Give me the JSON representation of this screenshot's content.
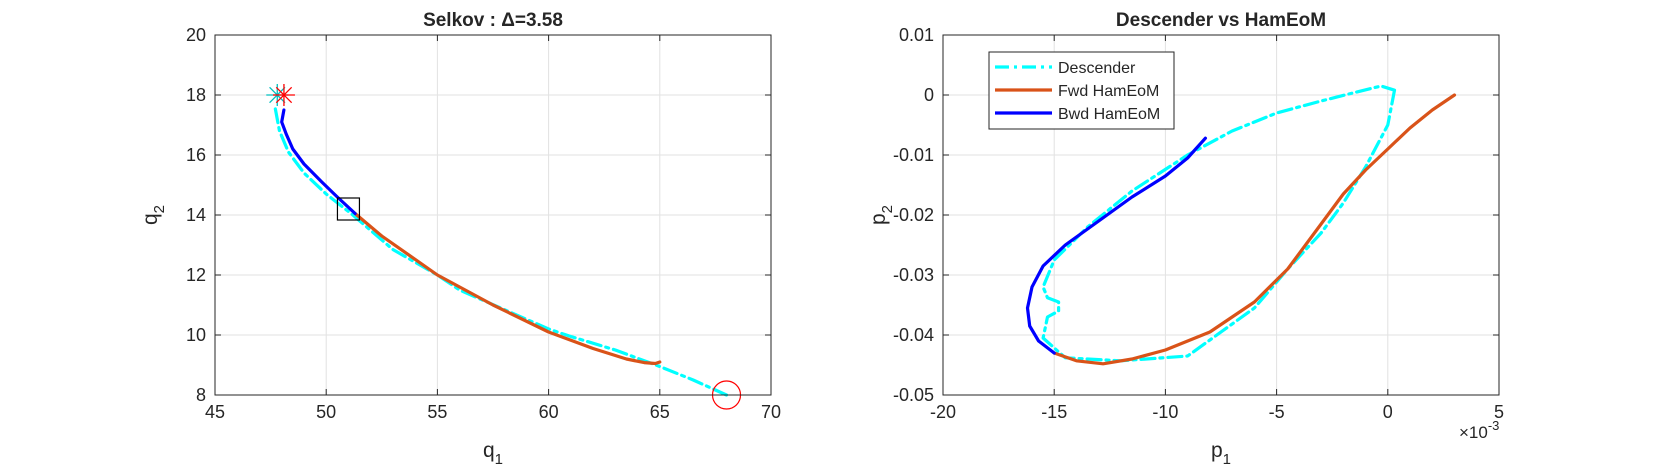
{
  "figure": {
    "background": "#ffffff"
  },
  "colors": {
    "descender": "#00ffff",
    "fwd": "#d95319",
    "bwd": "#0000ff",
    "marker_red": "#ff0000",
    "marker_start_cyan": "#00bfbf",
    "box": "#000000",
    "grid": "#e2e2e2",
    "axis": "#262626"
  },
  "chart_data": [
    {
      "type": "line",
      "title": "Selkov : Δ=3.58",
      "xlabel": "q",
      "xlabel_sub": "1",
      "ylabel": "q",
      "ylabel_sub": "2",
      "xlim": [
        45,
        70
      ],
      "ylim": [
        8,
        20
      ],
      "xticks": [
        45,
        50,
        55,
        60,
        65,
        70
      ],
      "yticks": [
        8,
        10,
        12,
        14,
        16,
        18,
        20
      ],
      "xtick_labels": [
        "45",
        "50",
        "55",
        "60",
        "65",
        "70"
      ],
      "ytick_labels": [
        "8",
        "10",
        "12",
        "14",
        "16",
        "18",
        "20"
      ],
      "grid": true,
      "series": [
        {
          "style": "dashdot",
          "color_key": "descender",
          "x": [
            68.0,
            66.5,
            65.0,
            63.0,
            61.0,
            60.0,
            58.0,
            56.0,
            55.0,
            53.0,
            51.2,
            50.0,
            49.0,
            48.3,
            47.9,
            47.7
          ],
          "y": [
            8.0,
            8.5,
            8.95,
            9.5,
            9.95,
            10.2,
            10.85,
            11.5,
            12.0,
            12.85,
            14.0,
            14.7,
            15.4,
            16.1,
            16.8,
            17.6
          ]
        },
        {
          "style": "solid",
          "color_key": "fwd",
          "x": [
            51.3,
            52.5,
            55.0,
            57.5,
            60.0,
            62.0,
            63.5,
            64.3,
            64.8,
            65.0
          ],
          "y": [
            14.05,
            13.3,
            12.0,
            11.0,
            10.1,
            9.55,
            9.2,
            9.08,
            9.05,
            9.1
          ]
        },
        {
          "style": "solid",
          "color_key": "bwd",
          "x": [
            51.3,
            50.5,
            49.8,
            49.0,
            48.5,
            48.2,
            48.0,
            48.1
          ],
          "y": [
            14.05,
            14.6,
            15.1,
            15.7,
            16.2,
            16.7,
            17.1,
            17.5
          ]
        }
      ],
      "markers": [
        {
          "shape": "asterisk",
          "color_key": "marker_start_cyan",
          "x": 47.8,
          "y": 18.0
        },
        {
          "shape": "asterisk",
          "color_key": "marker_red",
          "x": 48.1,
          "y": 18.0
        },
        {
          "shape": "square",
          "color_key": "box",
          "x": 51.0,
          "y": 14.2
        },
        {
          "shape": "circle",
          "color_key": "marker_red",
          "x": 68.0,
          "y": 8.0
        }
      ]
    },
    {
      "type": "line",
      "title": "Descender vs HamEoM",
      "xlabel": "p",
      "xlabel_sub": "1",
      "ylabel": "p",
      "ylabel_sub": "2",
      "xlim": [
        -0.02,
        0.005
      ],
      "ylim": [
        -0.05,
        0.01
      ],
      "xticks": [
        -0.02,
        -0.015,
        -0.01,
        -0.005,
        0,
        0.005
      ],
      "yticks": [
        -0.05,
        -0.04,
        -0.03,
        -0.02,
        -0.01,
        0,
        0.01
      ],
      "xtick_labels": [
        "-20",
        "-15",
        "-10",
        "-5",
        "0",
        "5"
      ],
      "ytick_labels": [
        "-0.05",
        "-0.04",
        "-0.03",
        "-0.02",
        "-0.01",
        "0",
        "0.01"
      ],
      "x_exponent": {
        "base": "×10",
        "power": "-3"
      },
      "grid": true,
      "legend": {
        "position": "top-left",
        "entries": [
          {
            "label": "Descender",
            "color_key": "descender",
            "style": "dashdot"
          },
          {
            "label": "Fwd HamEoM",
            "color_key": "fwd",
            "style": "solid"
          },
          {
            "label": "Bwd HamEoM",
            "color_key": "bwd",
            "style": "solid"
          }
        ]
      },
      "series": [
        {
          "name": "Descender",
          "style": "dashdot",
          "color_key": "descender",
          "x": [
            0.0003,
            0.0,
            -0.001,
            -0.002,
            -0.003,
            -0.0045,
            -0.006,
            -0.009,
            -0.012,
            -0.0145,
            -0.0155,
            -0.0153,
            -0.0148,
            -0.0148,
            -0.0153,
            -0.0155,
            -0.015,
            -0.0135,
            -0.0115,
            -0.009,
            -0.007,
            -0.005,
            -0.003,
            -0.0015,
            -0.0003,
            0.0003
          ],
          "y": [
            0.0008,
            -0.005,
            -0.012,
            -0.018,
            -0.023,
            -0.029,
            -0.0355,
            -0.0435,
            -0.0443,
            -0.0438,
            -0.0405,
            -0.037,
            -0.036,
            -0.0345,
            -0.0338,
            -0.032,
            -0.0275,
            -0.022,
            -0.016,
            -0.01,
            -0.006,
            -0.003,
            -0.001,
            0.0004,
            0.0015,
            0.0008
          ]
        },
        {
          "name": "Fwd HamEoM",
          "style": "solid",
          "color_key": "fwd",
          "x": [
            0.003,
            0.002,
            0.001,
            0.0,
            -0.001,
            -0.002,
            -0.003,
            -0.0045,
            -0.006,
            -0.008,
            -0.01,
            -0.0115,
            -0.0128,
            -0.014,
            -0.015
          ],
          "y": [
            0.0,
            -0.0025,
            -0.0055,
            -0.009,
            -0.0125,
            -0.0165,
            -0.0215,
            -0.029,
            -0.0345,
            -0.0395,
            -0.0425,
            -0.044,
            -0.0448,
            -0.0443,
            -0.043
          ]
        },
        {
          "name": "Bwd HamEoM",
          "style": "solid",
          "color_key": "bwd",
          "x": [
            -0.015,
            -0.0157,
            -0.0161,
            -0.0162,
            -0.016,
            -0.0155,
            -0.0145,
            -0.013,
            -0.0115,
            -0.01,
            -0.009,
            -0.0082
          ],
          "y": [
            -0.043,
            -0.041,
            -0.0385,
            -0.0355,
            -0.032,
            -0.0285,
            -0.025,
            -0.021,
            -0.017,
            -0.0135,
            -0.0105,
            -0.0072
          ]
        }
      ]
    }
  ]
}
